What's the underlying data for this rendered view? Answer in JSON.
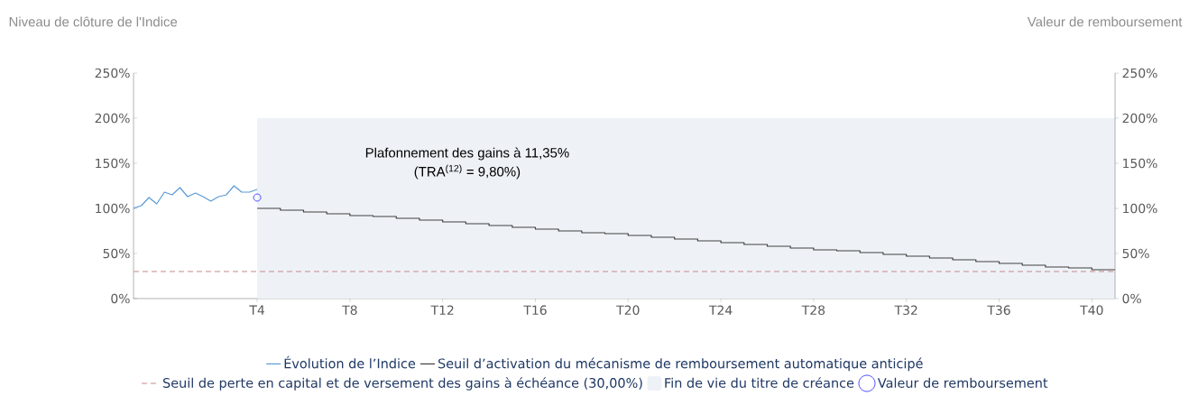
{
  "chart_data": {
    "type": "line",
    "ylabel": "Niveau de clôture de l'Indice",
    "y2label": "Valeur de remboursement",
    "annotations": [
      "Plafonnement des gains à 11,35%",
      "(TRA$^{(12)}$ = 9,80%)"
    ],
    "categories": [
      null,
      null,
      null,
      null,
      null,
      null,
      null,
      null,
      null,
      null,
      null,
      null,
      null,
      null,
      null,
      null,
      "T4",
      null,
      null,
      null,
      null,
      null,
      null,
      null,
      null,
      null,
      null,
      null,
      "T8",
      null,
      null,
      null,
      null,
      null,
      null,
      null,
      null,
      null,
      null,
      null,
      "T12",
      null,
      null,
      null,
      null,
      null,
      null,
      null,
      null,
      null,
      null,
      null,
      "T16",
      null,
      null,
      null,
      null,
      null,
      null,
      null,
      null,
      null,
      null,
      null,
      "T20",
      null,
      null,
      null,
      null,
      null,
      null,
      null,
      null,
      null,
      null,
      null,
      "T24",
      null,
      null,
      null,
      null,
      null,
      null,
      null,
      null,
      null,
      null,
      null,
      "T28",
      null,
      null,
      null,
      null,
      null,
      null,
      null,
      null,
      null,
      null,
      null,
      "T32",
      null,
      null,
      null,
      null,
      null,
      null,
      null,
      null,
      null,
      null,
      null,
      "T36",
      null,
      null,
      null,
      null,
      null,
      null,
      null,
      null,
      null,
      null,
      null,
      "T40",
      null,
      null,
      null
    ],
    "ylim": [
      0,
      250
    ],
    "yticks": [
      {
        "value": 0,
        "label": "0%"
      },
      {
        "value": 50,
        "label": "50%"
      },
      {
        "value": 100,
        "label": "100%"
      },
      {
        "value": 150,
        "label": "150%"
      },
      {
        "value": 200,
        "label": "200%"
      },
      {
        "value": 250,
        "label": "250%"
      }
    ],
    "y2lim": [
      0,
      250
    ],
    "y2ticks": [
      {
        "value": 0,
        "label": "0%"
      },
      {
        "value": 50,
        "label": "50%"
      },
      {
        "value": 100,
        "label": "100%"
      },
      {
        "value": 150,
        "label": "150%"
      },
      {
        "value": 200,
        "label": "200%"
      },
      {
        "value": 250,
        "label": "250%"
      }
    ],
    "legend": "bottom",
    "series": [
      {
        "name": "Fin de vie du titre de créance",
        "type": "area",
        "color": "#eef2f7",
        "values": [
          null,
          null,
          null,
          null,
          null,
          null,
          null,
          null,
          null,
          null,
          null,
          null,
          null,
          null,
          null,
          null,
          200,
          200,
          200,
          200,
          200,
          200,
          200,
          200,
          200,
          200,
          200,
          200,
          200,
          200,
          200,
          200,
          200,
          200,
          200,
          200,
          200,
          200,
          200,
          200,
          200,
          200,
          200,
          200,
          200,
          200,
          200,
          200,
          200,
          200,
          200,
          200,
          200,
          200,
          200,
          200,
          200,
          200,
          200,
          200,
          200,
          200,
          200,
          200,
          200,
          200,
          200,
          200,
          200,
          200,
          200,
          200,
          200,
          200,
          200,
          200,
          200,
          200,
          200,
          200,
          200,
          200,
          200,
          200,
          200,
          200,
          200,
          200,
          200,
          200,
          200,
          200,
          200,
          200,
          200,
          200,
          200,
          200,
          200,
          200,
          200,
          200,
          200,
          200,
          200,
          200,
          200,
          200,
          200,
          200,
          200,
          200,
          200,
          200,
          200,
          200,
          200,
          200,
          200,
          200,
          200,
          200,
          200,
          200,
          200,
          200,
          200,
          200
        ]
      },
      {
        "name": "Évolution de l’Indice",
        "color": "#5b9bd5",
        "values": [
          100,
          103,
          112,
          105,
          118,
          115,
          123,
          113,
          117,
          113,
          108,
          113,
          115,
          125,
          118,
          118,
          121,
          null,
          null,
          null,
          null,
          null,
          null,
          null,
          null,
          null,
          null,
          null,
          null,
          null,
          null,
          null,
          null,
          null,
          null,
          null,
          null,
          null,
          null,
          null,
          null,
          null,
          null,
          null,
          null,
          null,
          null,
          null,
          null,
          null,
          null,
          null,
          null,
          null,
          null,
          null,
          null,
          null,
          null,
          null,
          null,
          null,
          null,
          null,
          null,
          null,
          null,
          null,
          null,
          null,
          null,
          null,
          null,
          null,
          null,
          null,
          null,
          null,
          null,
          null,
          null,
          null,
          null,
          null,
          null,
          null,
          null,
          null,
          null,
          null,
          null,
          null,
          null,
          null,
          null,
          null,
          null,
          null,
          null,
          null,
          null,
          null,
          null,
          null,
          null,
          null,
          null,
          null,
          null,
          null,
          null,
          null,
          null,
          null,
          null,
          null,
          null,
          null,
          null,
          null,
          null,
          null,
          null,
          null,
          null,
          null,
          null,
          null
        ]
      },
      {
        "name": "Seuil d’activation du mécanisme de remboursement automatique anticipé",
        "type": "step",
        "color": "#404040",
        "values": [
          null,
          null,
          null,
          null,
          null,
          null,
          null,
          null,
          null,
          null,
          null,
          null,
          null,
          null,
          null,
          null,
          100,
          100,
          100,
          98,
          98,
          98,
          96,
          96,
          96,
          94,
          94,
          94,
          92,
          92,
          92,
          91,
          91,
          91,
          89,
          89,
          89,
          87,
          87,
          87,
          85,
          85,
          85,
          83,
          83,
          83,
          81,
          81,
          81,
          79,
          79,
          79,
          77,
          77,
          77,
          75,
          75,
          75,
          73,
          73,
          73,
          72,
          72,
          72,
          70,
          70,
          70,
          68,
          68,
          68,
          66,
          66,
          66,
          64,
          64,
          64,
          62,
          62,
          62,
          60,
          60,
          60,
          58,
          58,
          58,
          56,
          56,
          56,
          54,
          54,
          54,
          53,
          53,
          53,
          51,
          51,
          51,
          49,
          49,
          49,
          47,
          47,
          47,
          45,
          45,
          45,
          43,
          43,
          43,
          41,
          41,
          41,
          39,
          39,
          39,
          37,
          37,
          37,
          35,
          35,
          35,
          34,
          34,
          34,
          32,
          32,
          32,
          32
        ]
      },
      {
        "name": "Valeur de remboursement",
        "type": "scatter",
        "color": "#3a3aff",
        "marker": "circle",
        "values": [
          null,
          null,
          null,
          null,
          null,
          null,
          null,
          null,
          null,
          null,
          null,
          null,
          null,
          null,
          null,
          null,
          112,
          null,
          null,
          null,
          null,
          null,
          null,
          null,
          null,
          null,
          null,
          null,
          null,
          null,
          null,
          null,
          null,
          null,
          null,
          null,
          null,
          null,
          null,
          null,
          null,
          null,
          null,
          null,
          null,
          null,
          null,
          null,
          null,
          null,
          null,
          null,
          null,
          null,
          null,
          null,
          null,
          null,
          null,
          null,
          null,
          null,
          null,
          null,
          null,
          null,
          null,
          null,
          null,
          null,
          null,
          null,
          null,
          null,
          null,
          null,
          null,
          null,
          null,
          null,
          null,
          null,
          null,
          null,
          null,
          null,
          null,
          null,
          null,
          null,
          null,
          null,
          null,
          null,
          null,
          null,
          null,
          null,
          null,
          null,
          null,
          null,
          null,
          null,
          null,
          null,
          null,
          null,
          null,
          null,
          null,
          null,
          null,
          null,
          null,
          null,
          null,
          null,
          null,
          null,
          null,
          null,
          null,
          null,
          null,
          null,
          null,
          null
        ]
      }
    ],
    "ref_lines": [
      {
        "axis": "y",
        "value": 30,
        "label": "Seuil de perte en capital et de versement des gains à échéance (30,00%)",
        "color": "#c48a8a",
        "line_style": "dashed"
      }
    ]
  }
}
